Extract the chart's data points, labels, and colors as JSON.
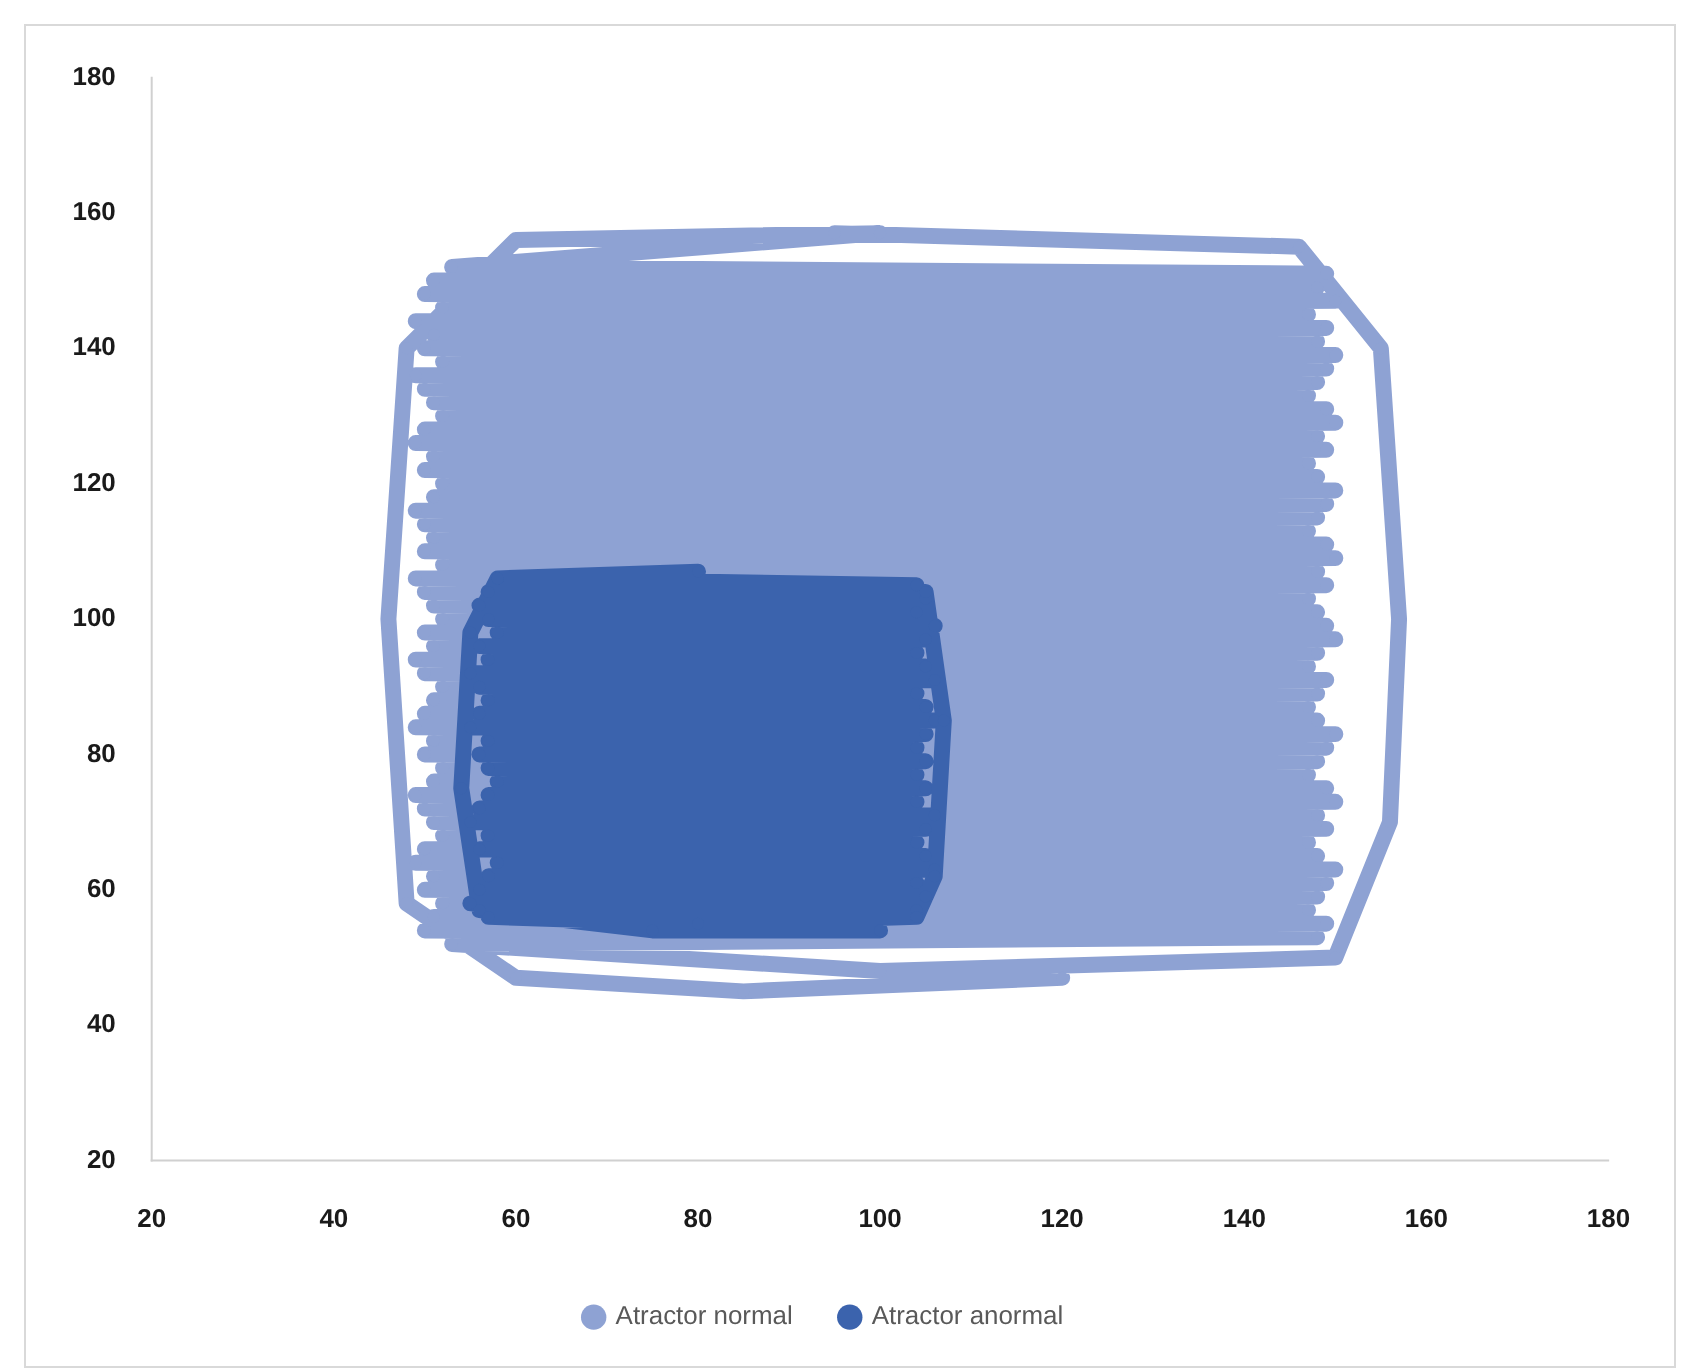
{
  "chart_data": {
    "type": "line",
    "series": [
      {
        "name": "Atractor normal",
        "color": "#8ea2d3",
        "x": [
          120,
          85,
          60,
          48,
          46,
          48,
          60,
          100,
          53,
          149,
          51,
          148,
          50,
          150,
          52,
          147,
          49,
          149,
          51,
          148,
          50,
          150,
          52,
          149,
          49,
          148,
          50,
          147,
          51,
          149,
          52,
          150,
          50,
          148,
          49,
          149,
          51,
          147,
          50,
          148,
          52,
          150,
          51,
          149,
          49,
          148,
          50,
          147,
          51,
          149,
          50,
          150,
          52,
          148,
          49,
          149,
          50,
          147,
          51,
          148,
          52,
          149,
          50,
          150,
          51,
          148,
          49,
          147,
          50,
          149,
          52,
          148,
          51,
          147,
          50,
          148,
          49,
          150,
          51,
          149,
          50,
          148,
          52,
          147,
          51,
          149,
          49,
          150,
          50,
          148,
          51,
          149,
          52,
          147,
          50,
          148,
          49,
          150,
          51,
          149,
          50,
          148,
          52,
          147,
          51,
          149,
          50,
          148,
          53,
          100,
          150,
          156,
          157,
          155,
          146,
          95
        ],
        "values": [
          47,
          45,
          47,
          58,
          100,
          140,
          156,
          157,
          152,
          151,
          150,
          149,
          148,
          147,
          146,
          145,
          144,
          143,
          142,
          141,
          140,
          139,
          138,
          137,
          136,
          135,
          134,
          133,
          132,
          131,
          130,
          129,
          128,
          127,
          126,
          125,
          124,
          123,
          122,
          121,
          120,
          119,
          118,
          117,
          116,
          115,
          114,
          113,
          112,
          111,
          110,
          109,
          108,
          107,
          106,
          105,
          104,
          103,
          102,
          101,
          100,
          99,
          98,
          97,
          96,
          95,
          94,
          93,
          92,
          91,
          90,
          89,
          88,
          87,
          86,
          85,
          84,
          83,
          82,
          81,
          80,
          79,
          78,
          77,
          76,
          75,
          74,
          73,
          72,
          71,
          70,
          69,
          68,
          67,
          66,
          65,
          64,
          63,
          62,
          61,
          60,
          59,
          58,
          57,
          56,
          55,
          54,
          53,
          52,
          48,
          50,
          70,
          100,
          140,
          155,
          157
        ]
      },
      {
        "name": "Atractor anormal",
        "color": "#3b63ad",
        "x": [
          100,
          75,
          56,
          54,
          55,
          58,
          80,
          58,
          104,
          57,
          105,
          56,
          104,
          57,
          106,
          58,
          105,
          56,
          104,
          57,
          105,
          55,
          106,
          56,
          104,
          57,
          105,
          56,
          106,
          55,
          105,
          57,
          104,
          56,
          105,
          57,
          104,
          58,
          105,
          57,
          104,
          56,
          106,
          55,
          105,
          57,
          104,
          56,
          105,
          58,
          106,
          57,
          104,
          56,
          105,
          55,
          104,
          57,
          80,
          104,
          106,
          107,
          105
        ],
        "values": [
          54,
          54,
          57,
          75,
          98,
          106,
          107,
          106,
          105,
          104,
          103,
          102,
          101,
          100,
          99,
          98,
          97,
          96,
          95,
          94,
          93,
          92,
          91,
          90,
          89,
          88,
          87,
          86,
          85,
          84,
          83,
          82,
          81,
          80,
          79,
          78,
          77,
          76,
          75,
          74,
          73,
          72,
          71,
          70,
          69,
          68,
          67,
          66,
          65,
          64,
          63,
          62,
          61,
          60,
          59,
          58,
          57,
          56,
          55,
          56,
          62,
          85,
          104
        ]
      }
    ],
    "xlim": [
      20,
      180
    ],
    "xticks": [
      20,
      40,
      60,
      80,
      100,
      120,
      140,
      160,
      180
    ],
    "ylim": [
      20,
      180
    ],
    "yticks": [
      20,
      40,
      60,
      80,
      100,
      120,
      140,
      160,
      180
    ],
    "legend": "bottom",
    "marker": "circle",
    "line_style": "solid"
  }
}
